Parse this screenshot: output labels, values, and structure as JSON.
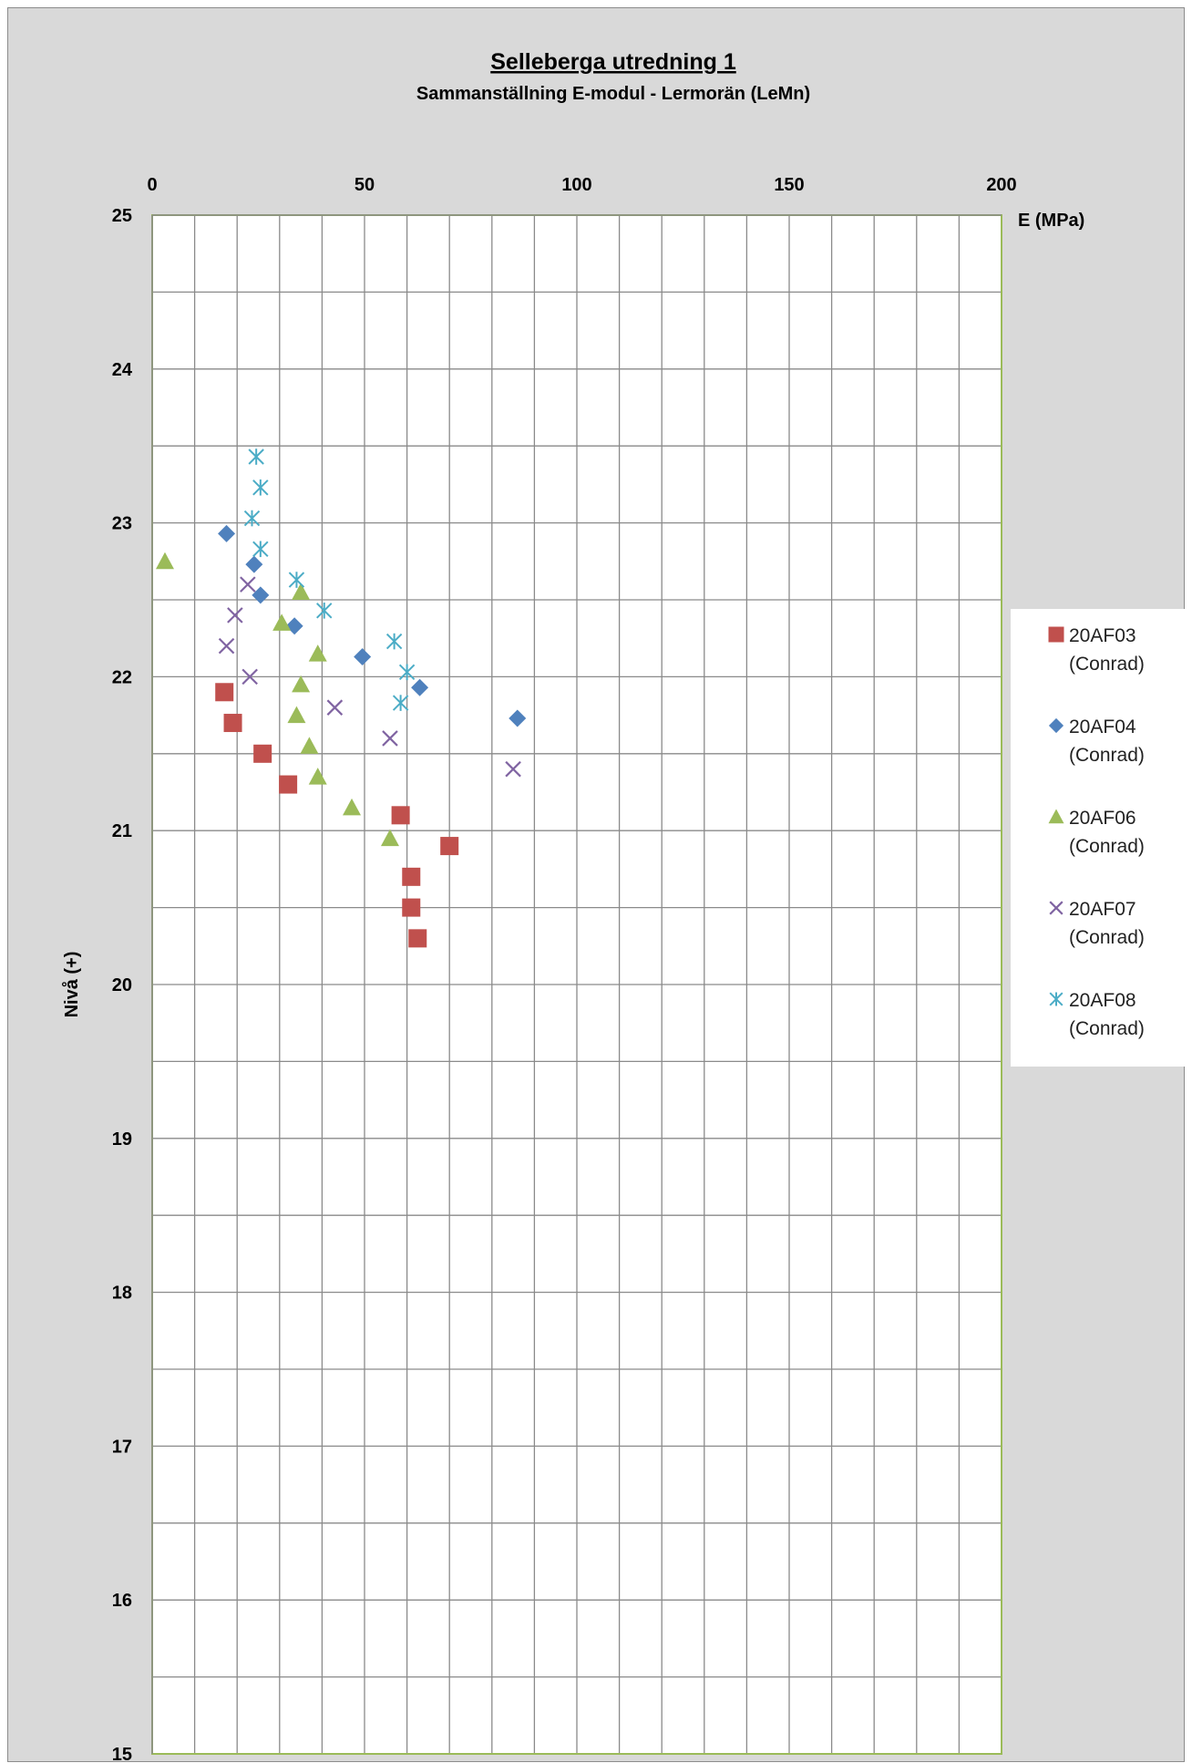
{
  "chart_data": {
    "type": "scatter",
    "title": "Selleberga utredning 1",
    "subtitle": "Sammanställning E-modul - Lermorän (LeMn)",
    "xlabel": "E (MPa)",
    "ylabel": "Nivå (+)",
    "xlim": [
      0,
      200
    ],
    "ylim": [
      15,
      25
    ],
    "x_axis_position": "top",
    "y_axis_inverted": false,
    "x_ticks": [
      "0",
      "50",
      "100",
      "150",
      "200"
    ],
    "y_ticks": [
      "25",
      "24",
      "23",
      "22",
      "21",
      "20",
      "19",
      "18",
      "17",
      "16",
      "15"
    ],
    "grid": true,
    "legend_position": "right",
    "series": [
      {
        "name": "20AF03",
        "sub": "(Conrad)",
        "marker": "square",
        "color": "#c0504d",
        "points": [
          [
            17,
            21.9
          ],
          [
            19,
            21.7
          ],
          [
            26,
            21.5
          ],
          [
            32,
            21.3
          ],
          [
            58.5,
            21.1
          ],
          [
            70,
            20.9
          ],
          [
            61,
            20.7
          ],
          [
            61,
            20.5
          ],
          [
            62.5,
            20.3
          ]
        ]
      },
      {
        "name": "20AF04",
        "sub": "(Conrad)",
        "marker": "diamond",
        "color": "#4f81bd",
        "points": [
          [
            17.5,
            22.93
          ],
          [
            24,
            22.73
          ],
          [
            25.5,
            22.53
          ],
          [
            33.5,
            22.33
          ],
          [
            49.5,
            22.13
          ],
          [
            63,
            21.93
          ],
          [
            86,
            21.73
          ]
        ]
      },
      {
        "name": "20AF06",
        "sub": "(Conrad)",
        "marker": "triangle",
        "color": "#9bbb59",
        "points": [
          [
            3,
            22.75
          ],
          [
            35,
            22.55
          ],
          [
            30.5,
            22.35
          ],
          [
            39,
            22.15
          ],
          [
            35,
            21.95
          ],
          [
            34,
            21.75
          ],
          [
            37,
            21.55
          ],
          [
            39,
            21.35
          ],
          [
            47,
            21.15
          ],
          [
            56,
            20.95
          ]
        ]
      },
      {
        "name": "20AF07",
        "sub": "(Conrad)",
        "marker": "x",
        "color": "#8064a2",
        "points": [
          [
            22.5,
            22.6
          ],
          [
            19.5,
            22.4
          ],
          [
            17.5,
            22.2
          ],
          [
            23,
            22.0
          ],
          [
            43,
            21.8
          ],
          [
            56,
            21.6
          ],
          [
            85,
            21.4
          ]
        ]
      },
      {
        "name": "20AF08",
        "sub": "(Conrad)",
        "marker": "asterisk",
        "color": "#4bacc6",
        "points": [
          [
            24.5,
            23.43
          ],
          [
            25.5,
            23.23
          ],
          [
            23.5,
            23.03
          ],
          [
            25.5,
            22.83
          ],
          [
            34,
            22.63
          ],
          [
            40.5,
            22.43
          ],
          [
            57,
            22.23
          ],
          [
            60,
            22.03
          ],
          [
            58.5,
            21.83
          ]
        ]
      }
    ]
  }
}
